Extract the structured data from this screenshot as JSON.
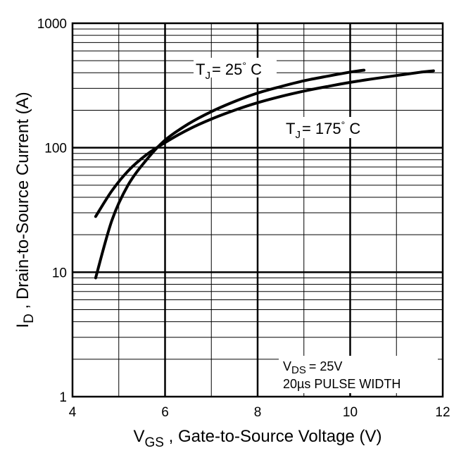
{
  "chart_data": {
    "type": "line",
    "xlabel": {
      "main": "V",
      "sub": "GS",
      "rest": " , Gate-to-Source Voltage (V)"
    },
    "ylabel": {
      "main": "I",
      "sub": "D",
      "rest": " ,  Drain-to-Source Current (A)"
    },
    "xlim": [
      4,
      12
    ],
    "ylim": [
      1,
      1000
    ],
    "yscale": "log",
    "grid": true,
    "x_ticks": [
      {
        "value": 4,
        "label": "4"
      },
      {
        "value": 6,
        "label": "6"
      },
      {
        "value": 8,
        "label": "8"
      },
      {
        "value": 10,
        "label": "10"
      },
      {
        "value": 12,
        "label": "12"
      }
    ],
    "y_ticks": [
      {
        "value": 1,
        "label": "1"
      },
      {
        "value": 10,
        "label": "10"
      },
      {
        "value": 100,
        "label": "100"
      },
      {
        "value": 1000,
        "label": "1000"
      }
    ],
    "series": [
      {
        "name": "TJ = 25° C",
        "x": [
          4.5,
          4.85,
          5.2,
          5.6,
          6.0,
          6.5,
          7.0,
          7.5,
          8.0,
          8.5,
          9.0,
          9.5,
          10.0,
          10.3
        ],
        "y": [
          9,
          26,
          50,
          80,
          115,
          155,
          195,
          235,
          275,
          310,
          345,
          375,
          405,
          420
        ]
      },
      {
        "name": "TJ = 175° C",
        "x": [
          4.5,
          4.85,
          5.2,
          5.6,
          6.0,
          6.5,
          7.0,
          7.5,
          8.0,
          8.5,
          9.0,
          9.5,
          10.0,
          10.5,
          11.0,
          11.5,
          11.8
        ],
        "y": [
          28,
          45,
          65,
          88,
          110,
          140,
          170,
          200,
          230,
          258,
          285,
          310,
          335,
          358,
          380,
          403,
          415
        ]
      }
    ],
    "annotations": [
      {
        "id": "tj25",
        "main": "T",
        "sub": "J",
        "rest": "= 25",
        "deg": "°",
        "unit": " C"
      },
      {
        "id": "tj175",
        "main": "T",
        "sub": "J",
        "rest": "= 175",
        "deg": "°",
        "unit": " C"
      },
      {
        "id": "vds",
        "main": "V",
        "sub": "DS",
        "rest": "= 25V"
      },
      {
        "id": "pulse",
        "text": "20µs PULSE WIDTH"
      }
    ]
  }
}
